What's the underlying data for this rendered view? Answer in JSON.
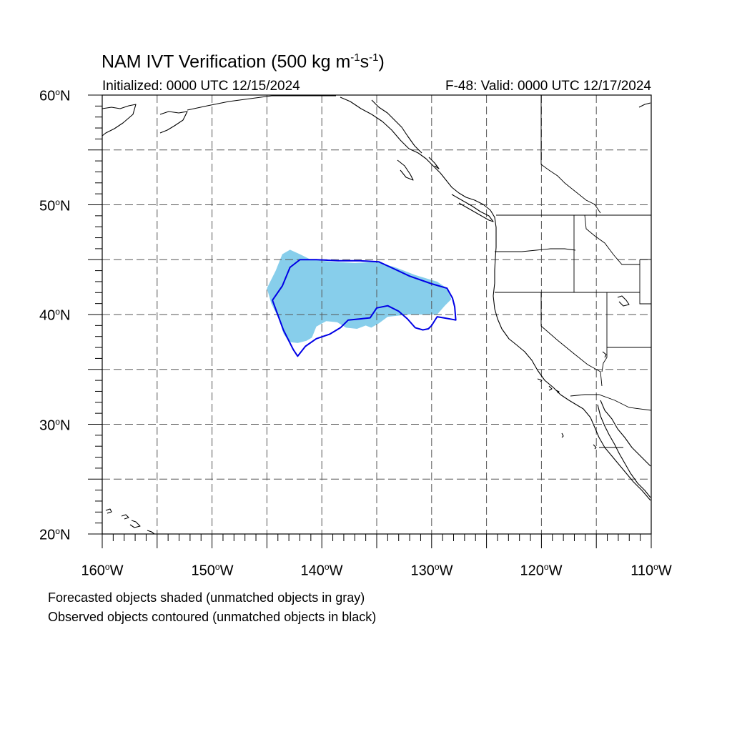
{
  "title": {
    "main": "NAM IVT Verification (500 kg m",
    "sup1": "-1",
    "mid": "s",
    "sup2": "-1",
    "end": ")"
  },
  "initialized": "Initialized: 0000 UTC 12/15/2024",
  "valid": "F-48: Valid: 0000 UTC 12/17/2024",
  "lat_labels": [
    {
      "value": "60",
      "suffix": "N"
    },
    {
      "value": "50",
      "suffix": "N"
    },
    {
      "value": "40",
      "suffix": "N"
    },
    {
      "value": "30",
      "suffix": "N"
    },
    {
      "value": "20",
      "suffix": "N"
    }
  ],
  "lon_labels": [
    {
      "value": "160",
      "suffix": "W"
    },
    {
      "value": "150",
      "suffix": "W"
    },
    {
      "value": "140",
      "suffix": "W"
    },
    {
      "value": "130",
      "suffix": "W"
    },
    {
      "value": "120",
      "suffix": "W"
    },
    {
      "value": "110",
      "suffix": "W"
    }
  ],
  "footnote_forecast": "Forecasted objects shaded (unmatched objects in gray)",
  "footnote_observed": "Observed objects contoured (unmatched objects in black)",
  "colors": {
    "forecast_fill": "#87ceeb",
    "observed_contour": "#0000e6",
    "coastline": "#000000",
    "grid": "#555555"
  },
  "map_extent": {
    "lon_min": -160,
    "lon_max": -110,
    "lat_min": 20,
    "lat_max": 60
  },
  "forecast_object_lonlat": [
    [
      -145.0,
      42.4
    ],
    [
      -144.2,
      44.0
    ],
    [
      -143.6,
      45.5
    ],
    [
      -142.9,
      45.9
    ],
    [
      -142.0,
      45.5
    ],
    [
      -141.0,
      45.0
    ],
    [
      -139.0,
      44.8
    ],
    [
      -137.0,
      44.7
    ],
    [
      -135.0,
      44.8
    ],
    [
      -133.3,
      44.3
    ],
    [
      -131.5,
      43.6
    ],
    [
      -129.5,
      43.0
    ],
    [
      -128.6,
      42.4
    ],
    [
      -128.2,
      41.4
    ],
    [
      -128.8,
      40.8
    ],
    [
      -129.5,
      40.0
    ],
    [
      -131.5,
      40.0
    ],
    [
      -132.2,
      40.0
    ],
    [
      -133.0,
      39.9
    ],
    [
      -134.0,
      39.8
    ],
    [
      -134.8,
      39.2
    ],
    [
      -135.5,
      38.8
    ],
    [
      -136.0,
      39.0
    ],
    [
      -136.8,
      38.7
    ],
    [
      -137.8,
      38.8
    ],
    [
      -138.6,
      39.3
    ],
    [
      -139.6,
      39.4
    ],
    [
      -140.5,
      38.9
    ],
    [
      -140.9,
      37.9
    ],
    [
      -141.4,
      37.6
    ],
    [
      -142.2,
      37.4
    ],
    [
      -143.0,
      37.5
    ],
    [
      -143.5,
      38.3
    ],
    [
      -143.9,
      39.6
    ],
    [
      -144.6,
      41.0
    ]
  ],
  "observed_object_lonlat": [
    [
      -144.5,
      41.3
    ],
    [
      -143.6,
      42.6
    ],
    [
      -142.9,
      44.3
    ],
    [
      -142.0,
      45.0
    ],
    [
      -140.5,
      45.0
    ],
    [
      -138.5,
      44.9
    ],
    [
      -136.5,
      44.9
    ],
    [
      -134.8,
      44.8
    ],
    [
      -133.5,
      44.2
    ],
    [
      -132.0,
      43.5
    ],
    [
      -130.0,
      42.8
    ],
    [
      -128.6,
      42.4
    ],
    [
      -128.1,
      41.5
    ],
    [
      -127.9,
      40.7
    ],
    [
      -127.8,
      39.5
    ],
    [
      -128.9,
      39.7
    ],
    [
      -129.5,
      39.8
    ],
    [
      -130.0,
      39.0
    ],
    [
      -130.3,
      38.7
    ],
    [
      -130.8,
      38.6
    ],
    [
      -131.5,
      38.8
    ],
    [
      -132.2,
      39.6
    ],
    [
      -133.0,
      40.3
    ],
    [
      -134.0,
      40.8
    ],
    [
      -135.0,
      40.6
    ],
    [
      -135.6,
      39.7
    ],
    [
      -136.5,
      39.6
    ],
    [
      -137.6,
      39.5
    ],
    [
      -138.3,
      38.8
    ],
    [
      -139.3,
      38.2
    ],
    [
      -140.5,
      37.8
    ],
    [
      -141.5,
      37.1
    ],
    [
      -142.2,
      36.2
    ],
    [
      -142.6,
      36.8
    ],
    [
      -143.5,
      38.6
    ]
  ]
}
